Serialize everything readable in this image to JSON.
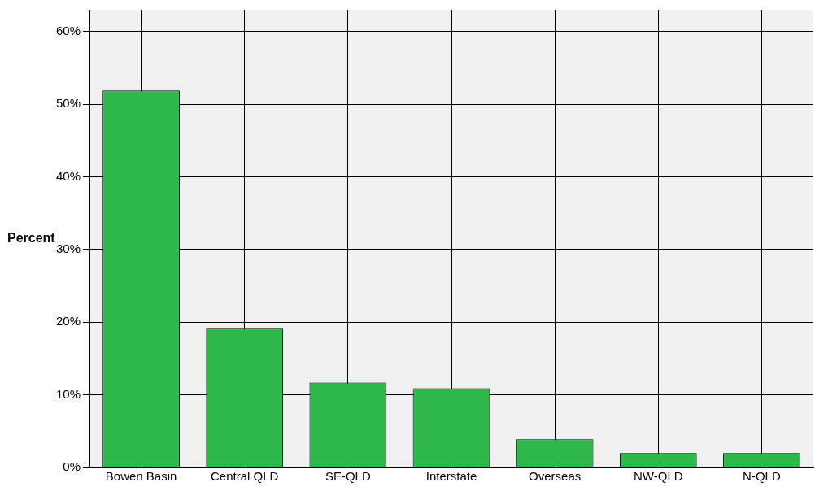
{
  "chart_data": {
    "type": "bar",
    "ylabel": "Percent",
    "categories": [
      "Bowen Basin",
      "Central QLD",
      "SE-QLD",
      "Interstate",
      "Overseas",
      "NW-QLD",
      "N-QLD"
    ],
    "values": [
      51.9,
      19.1,
      11.7,
      10.9,
      3.9,
      2.0,
      2.0
    ],
    "color": "#2eb84a",
    "ylim": [
      0,
      63
    ],
    "yticks": [
      {
        "value": 0,
        "label": "0%"
      },
      {
        "value": 10,
        "label": "10%"
      },
      {
        "value": 20,
        "label": "20%"
      },
      {
        "value": 30,
        "label": "30%"
      },
      {
        "value": 40,
        "label": "40%"
      },
      {
        "value": 50,
        "label": "50%"
      },
      {
        "value": 60,
        "label": "60%"
      }
    ],
    "grid": true
  }
}
